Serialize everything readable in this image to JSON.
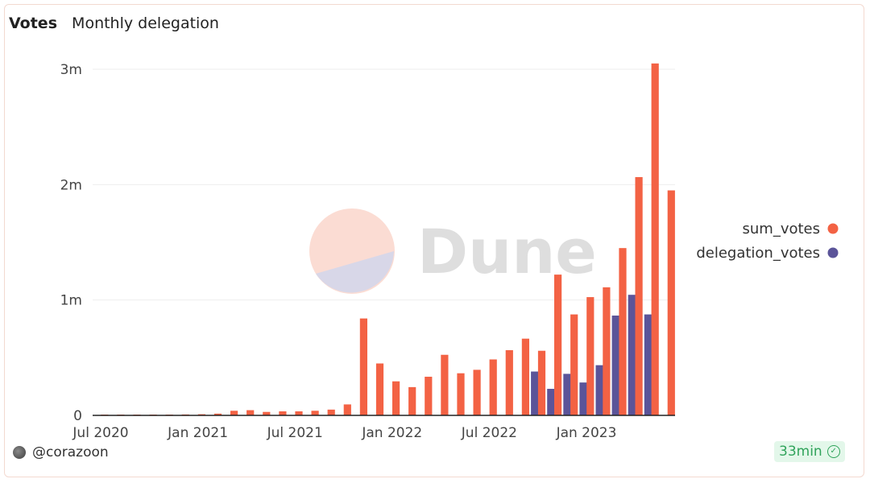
{
  "header": {
    "title": "Votes",
    "subtitle": "Monthly delegation"
  },
  "watermark": {
    "text": "Dune"
  },
  "footer": {
    "user": "@corazoon",
    "refresh_badge": "33min",
    "badge_icon": "check-circle-icon"
  },
  "colors": {
    "sum_votes": "#f36244",
    "delegation_votes": "#5b5499",
    "badge_text": "#2fa35a",
    "badge_bg": "#e3f7ea"
  },
  "chart_data": {
    "type": "bar",
    "x_tick_labels": [
      "Jul 2020",
      "Jan 2021",
      "Jul 2021",
      "Jan 2022",
      "Jul 2022",
      "Jan 2023"
    ],
    "x_tick_index": [
      0,
      6,
      12,
      18,
      24,
      30
    ],
    "categories": [
      "2020-07",
      "2020-08",
      "2020-09",
      "2020-10",
      "2020-11",
      "2020-12",
      "2021-01",
      "2021-02",
      "2021-03",
      "2021-04",
      "2021-05",
      "2021-06",
      "2021-07",
      "2021-08",
      "2021-09",
      "2021-10",
      "2021-11",
      "2021-12",
      "2022-01",
      "2022-02",
      "2022-03",
      "2022-04",
      "2022-05",
      "2022-06",
      "2022-07",
      "2022-08",
      "2022-09",
      "2022-10",
      "2022-11",
      "2022-12",
      "2023-01",
      "2023-02",
      "2023-03",
      "2023-04",
      "2023-05",
      "2023-06",
      "2023-07"
    ],
    "series": [
      {
        "name": "sum_votes",
        "values": [
          2000,
          3000,
          4000,
          5000,
          6000,
          8000,
          10000,
          15000,
          40000,
          45000,
          30000,
          35000,
          35000,
          40000,
          50000,
          95000,
          840000,
          450000,
          295000,
          245000,
          335000,
          525000,
          365000,
          395000,
          485000,
          565000,
          665000,
          560000,
          1220000,
          875000,
          1025000,
          1110000,
          1450000,
          2065000,
          3050000,
          1950000,
          0
        ]
      },
      {
        "name": "delegation_votes",
        "values": [
          0,
          0,
          0,
          0,
          0,
          0,
          0,
          0,
          0,
          0,
          0,
          0,
          0,
          0,
          0,
          0,
          0,
          0,
          0,
          0,
          0,
          0,
          0,
          0,
          0,
          0,
          0,
          380000,
          230000,
          360000,
          285000,
          435000,
          865000,
          1045000,
          875000,
          0,
          0
        ]
      }
    ],
    "y_ticks": [
      0,
      1000000,
      2000000,
      3000000
    ],
    "y_tick_labels": [
      "0",
      "1m",
      "2m",
      "3m"
    ],
    "ylim": [
      0,
      3000000
    ],
    "legend_position": "right",
    "grid": true
  }
}
